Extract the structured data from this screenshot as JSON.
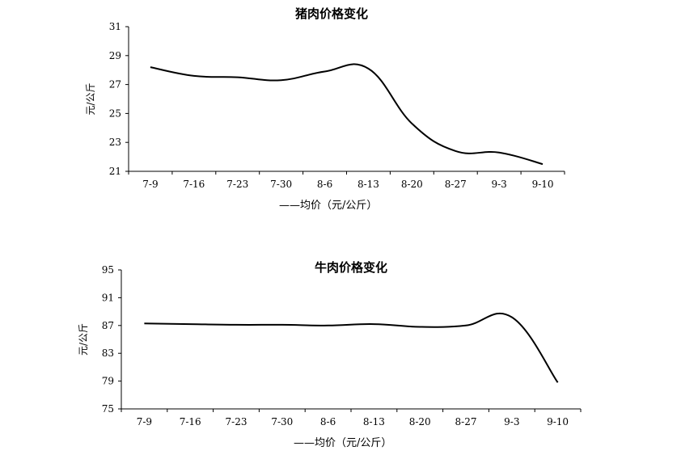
{
  "chart_data": [
    {
      "type": "line",
      "title": "猪肉价格变化",
      "ylabel": "元/公斤",
      "legend": "——均价（元/公斤）",
      "categories": [
        "7-9",
        "7-16",
        "7-23",
        "7-30",
        "8-6",
        "8-13",
        "8-20",
        "8-27",
        "9-3",
        "9-10"
      ],
      "values": [
        28.2,
        27.6,
        27.5,
        27.3,
        27.9,
        28.1,
        24.3,
        22.4,
        22.3,
        21.5
      ],
      "ylim": [
        21,
        31
      ],
      "yticks": [
        21,
        23,
        25,
        27,
        29,
        31
      ],
      "grid": false
    },
    {
      "type": "line",
      "title": "牛肉价格变化",
      "ylabel": "元/公斤",
      "legend": "——均价（元/公斤）",
      "categories": [
        "7-9",
        "7-16",
        "7-23",
        "7-30",
        "8-6",
        "8-13",
        "8-20",
        "8-27",
        "9-3",
        "9-10"
      ],
      "values": [
        87.3,
        87.2,
        87.1,
        87.1,
        87.0,
        87.2,
        86.8,
        87.0,
        88.2,
        78.8
      ],
      "ylim": [
        75,
        95
      ],
      "yticks": [
        75,
        79,
        83,
        87,
        91,
        95
      ],
      "grid": false
    }
  ]
}
